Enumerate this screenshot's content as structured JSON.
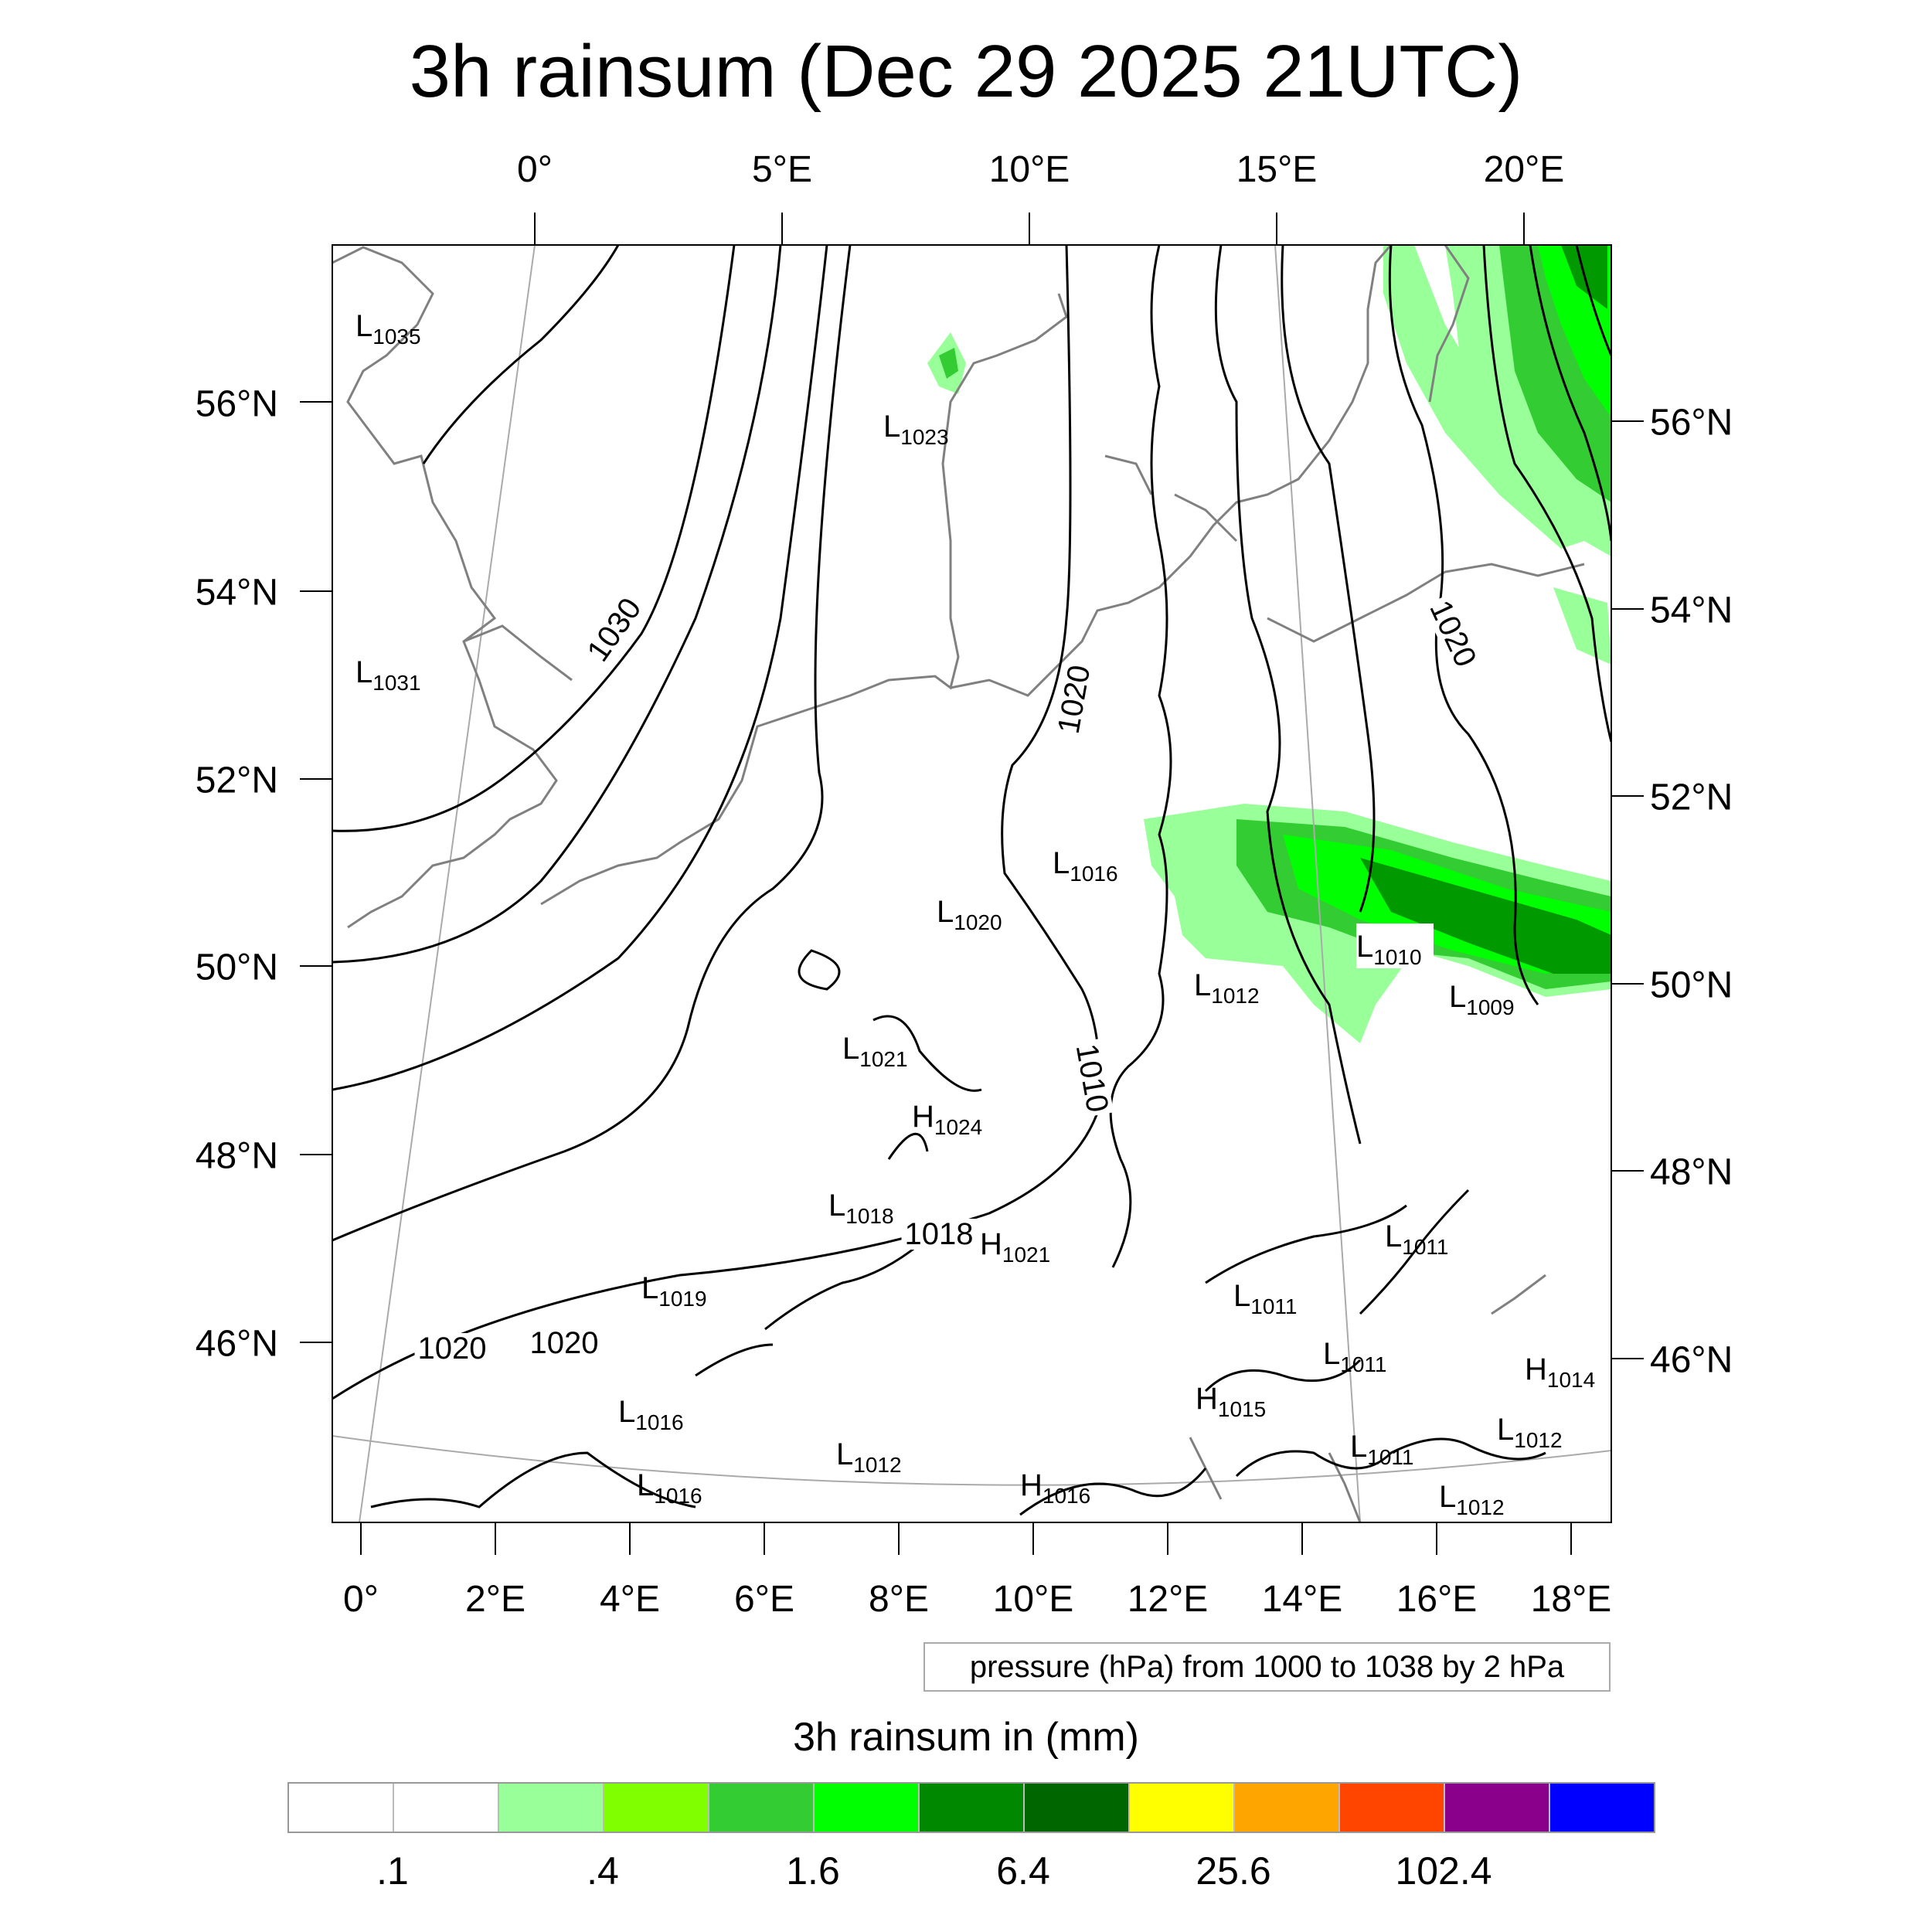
{
  "title": "3h rainsum (Dec 29 2025 21UTC)",
  "map": {
    "top_lon_ticks": [
      "0°",
      "5°E",
      "10°E",
      "15°E",
      "20°E"
    ],
    "bottom_lon_ticks": [
      "0°",
      "2°E",
      "4°E",
      "6°E",
      "8°E",
      "10°E",
      "12°E",
      "14°E",
      "16°E",
      "18°E"
    ],
    "left_lat_ticks": [
      "56°N",
      "54°N",
      "52°N",
      "50°N",
      "48°N",
      "46°N"
    ],
    "right_lat_ticks": [
      "56°N",
      "54°N",
      "52°N",
      "50°N",
      "48°N",
      "46°N"
    ],
    "isobar_labels": [
      "1030",
      "1020",
      "1020",
      "1010",
      "1020",
      "1020",
      "1018"
    ],
    "pressure_centers": [
      {
        "type": "L",
        "value": "1035"
      },
      {
        "type": "L",
        "value": "1031"
      },
      {
        "type": "L",
        "value": "1023"
      },
      {
        "type": "L",
        "value": "1016"
      },
      {
        "type": "L",
        "value": "1020"
      },
      {
        "type": "L",
        "value": "1012"
      },
      {
        "type": "L",
        "value": "1010"
      },
      {
        "type": "L",
        "value": "1009"
      },
      {
        "type": "L",
        "value": "1021"
      },
      {
        "type": "H",
        "value": "1024"
      },
      {
        "type": "L",
        "value": "1018"
      },
      {
        "type": "H",
        "value": "1021"
      },
      {
        "type": "L",
        "value": "1011"
      },
      {
        "type": "L",
        "value": "1019"
      },
      {
        "type": "L",
        "value": "1011"
      },
      {
        "type": "L",
        "value": "1011"
      },
      {
        "type": "H",
        "value": "1014"
      },
      {
        "type": "L",
        "value": "1016"
      },
      {
        "type": "H",
        "value": "1015"
      },
      {
        "type": "L",
        "value": "1012"
      },
      {
        "type": "L",
        "value": "1012"
      },
      {
        "type": "L",
        "value": "1011"
      },
      {
        "type": "L",
        "value": "1016"
      },
      {
        "type": "H",
        "value": "1016"
      },
      {
        "type": "L",
        "value": "1012"
      }
    ],
    "info_text": "pressure (hPa) from 1000 to 1038 by 2 hPa",
    "colors": {
      "isobar": "#000000",
      "coastline": "#808080",
      "graticule": "#aaaaaa",
      "rain_light": "#99ff99",
      "rain_mid": "#33cc33",
      "rain_bright": "#00ff00",
      "rain_dark": "#009900"
    }
  },
  "legend": {
    "title": "3h rainsum in (mm)",
    "colors": [
      "#ffffff",
      "#ffffff",
      "#99ff99",
      "#80ff00",
      "#33cc33",
      "#00ff00",
      "#008800",
      "#006600",
      "#ffff00",
      "#ffa500",
      "#ff4500",
      "#8b008b",
      "#0000ff"
    ],
    "labels": [
      ".1",
      ".4",
      "1.6",
      "6.4",
      "25.6",
      "102.4"
    ]
  }
}
